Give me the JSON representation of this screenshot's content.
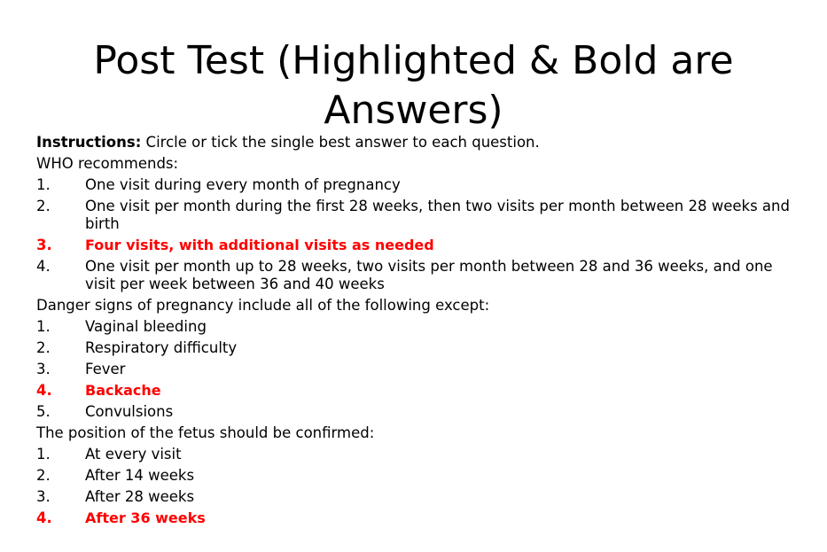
{
  "title": {
    "line1": "Post Test (Highlighted & Bold are",
    "line2": "Answers)"
  },
  "instructions": {
    "label": "Instructions:",
    "text": " Circle or tick the single best answer to each question."
  },
  "questions": [
    {
      "prompt": "WHO recommends:",
      "options": [
        {
          "num": "1.",
          "text": "One visit during every month of pregnancy",
          "answer": false
        },
        {
          "num": "2.",
          "text": "One visit per month during the first 28 weeks, then two visits per month between 28 weeks and birth",
          "answer": false
        },
        {
          "num": "3.",
          "text": "Four visits, with additional visits as needed",
          "answer": true
        },
        {
          "num": "4.",
          "text": "One visit per month up to 28 weeks, two visits per month between 28 and 36 weeks, and one visit per week between 36 and 40 weeks",
          "answer": false
        }
      ]
    },
    {
      "prompt": "Danger signs of pregnancy include all of the following except:",
      "options": [
        {
          "num": "1.",
          "text": "Vaginal bleeding",
          "answer": false
        },
        {
          "num": "2.",
          "text": "Respiratory difficulty",
          "answer": false
        },
        {
          "num": "3.",
          "text": "Fever",
          "answer": false
        },
        {
          "num": "4.",
          "text": "Backache",
          "answer": true
        },
        {
          "num": "5.",
          "text": "Convulsions",
          "answer": false
        }
      ]
    },
    {
      "prompt": "The position of the fetus should be confirmed:",
      "options": [
        {
          "num": "1.",
          "text": "At every visit",
          "answer": false
        },
        {
          "num": "2.",
          "text": "After 14 weeks",
          "answer": false
        },
        {
          "num": "3.",
          "text": "After 28 weeks",
          "answer": false
        },
        {
          "num": "4.",
          "text": "After 36 weeks",
          "answer": true
        }
      ]
    }
  ],
  "colors": {
    "answer": "#ff0000",
    "text": "#000000",
    "background": "#ffffff"
  }
}
